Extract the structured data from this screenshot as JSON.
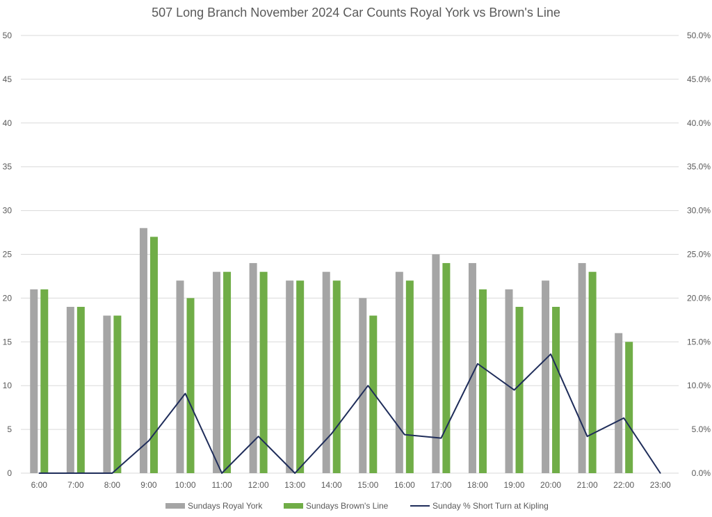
{
  "colors": {
    "royal_york": "#A5A5A5",
    "browns_line": "#70AD47",
    "short_turn": "#1F2D5A",
    "grid": "#D9D9D9",
    "text": "#595959"
  },
  "chart_data": {
    "type": "bar",
    "title": "507 Long Branch November 2024 Car Counts Royal York vs Brown's Line",
    "categories": [
      "6:00",
      "7:00",
      "8:00",
      "9:00",
      "10:00",
      "11:00",
      "12:00",
      "13:00",
      "14:00",
      "15:00",
      "16:00",
      "17:00",
      "18:00",
      "19:00",
      "20:00",
      "21:00",
      "22:00",
      "23:00"
    ],
    "series": [
      {
        "name": "Sundays Royal York",
        "type": "bar",
        "axis": "left",
        "values": [
          21,
          19,
          18,
          28,
          22,
          23,
          24,
          22,
          23,
          20,
          23,
          25,
          24,
          21,
          22,
          24,
          16,
          null
        ]
      },
      {
        "name": "Sundays Brown's Line",
        "type": "bar",
        "axis": "left",
        "values": [
          21,
          19,
          18,
          27,
          20,
          23,
          23,
          22,
          22,
          18,
          22,
          24,
          21,
          19,
          19,
          23,
          15,
          null
        ]
      },
      {
        "name": "Sunday % Short Turn at Kipling",
        "type": "line",
        "axis": "right",
        "values": [
          0.0,
          0.0,
          0.0,
          3.7,
          9.1,
          0.0,
          4.2,
          0.0,
          4.5,
          10.0,
          4.4,
          4.0,
          12.5,
          9.5,
          13.6,
          4.2,
          6.3,
          0.0
        ]
      }
    ],
    "ylim": [
      0,
      50
    ],
    "y_ticks": [
      "0",
      "5",
      "10",
      "15",
      "20",
      "25",
      "30",
      "35",
      "40",
      "45",
      "50"
    ],
    "y2lim": [
      0,
      50
    ],
    "y2_ticks": [
      "0.0%",
      "5.0%",
      "10.0%",
      "15.0%",
      "20.0%",
      "25.0%",
      "30.0%",
      "35.0%",
      "40.0%",
      "45.0%",
      "50.0%"
    ],
    "grid": true,
    "legend_position": "bottom"
  }
}
